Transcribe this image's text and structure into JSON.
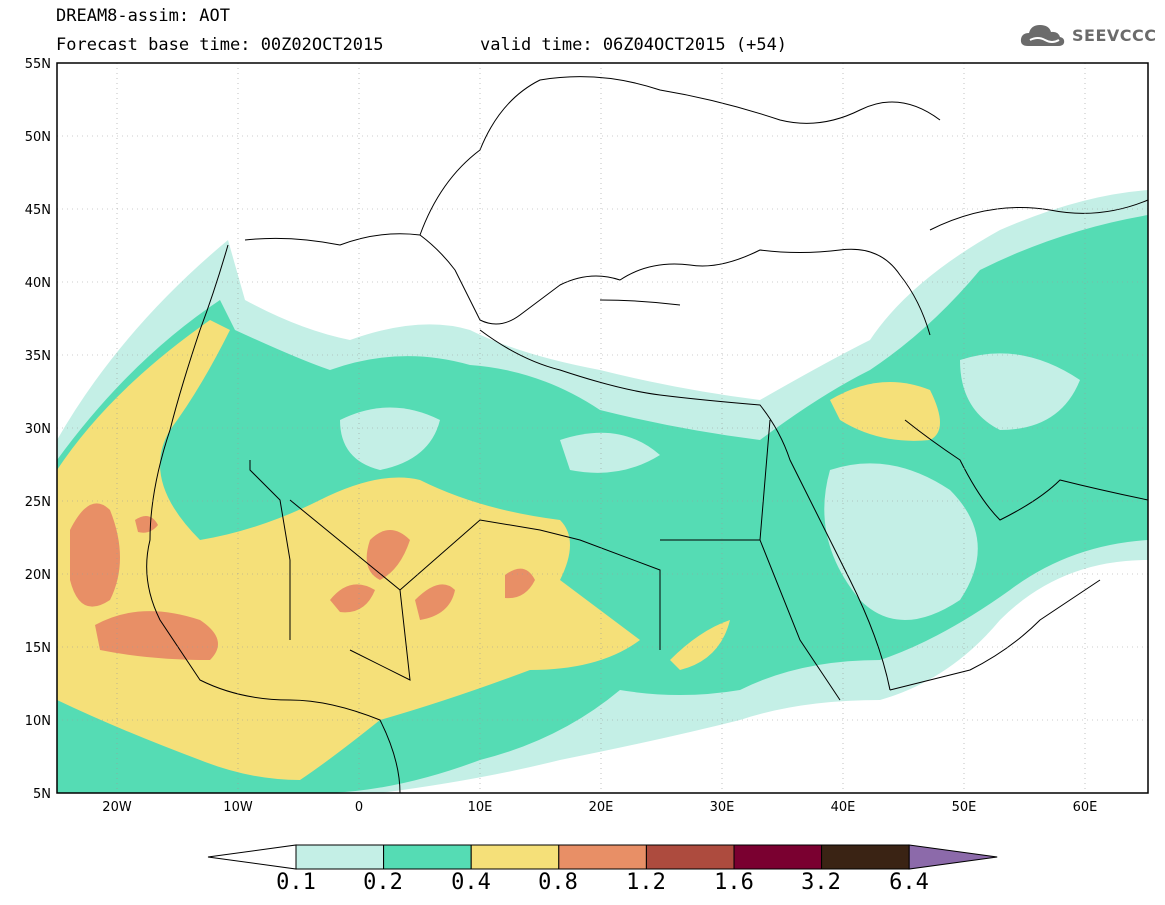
{
  "title": {
    "line1": "DREAM8-assim: AOT",
    "line2": "Forecast base time: 00Z02OCT2015",
    "line3": "valid time: 06Z04OCT2015 (+54)"
  },
  "logo": {
    "text": "SEEVCCC",
    "icon": "cloud-logo-icon",
    "color": "#6b6b6b"
  },
  "map": {
    "lat_labels": [
      "55N",
      "50N",
      "45N",
      "40N",
      "35N",
      "30N",
      "25N",
      "20N",
      "15N",
      "10N",
      "5N"
    ],
    "lon_labels": [
      "20W",
      "10W",
      "0",
      "10E",
      "20E",
      "30E",
      "40E",
      "50E",
      "60E"
    ],
    "extent": {
      "lon": [
        -25,
        65
      ],
      "lat": [
        5,
        55
      ]
    },
    "variable": "AOT"
  },
  "colorbar": {
    "levels": [
      "0.1",
      "0.2",
      "0.4",
      "0.8",
      "1.2",
      "1.6",
      "3.2",
      "6.4"
    ],
    "colors": [
      "#ffffff",
      "#c4efe6",
      "#55dcb4",
      "#f5e079",
      "#e88f66",
      "#ad4b3e",
      "#7a0030",
      "#3a2314",
      "#8c6aaa"
    ]
  }
}
